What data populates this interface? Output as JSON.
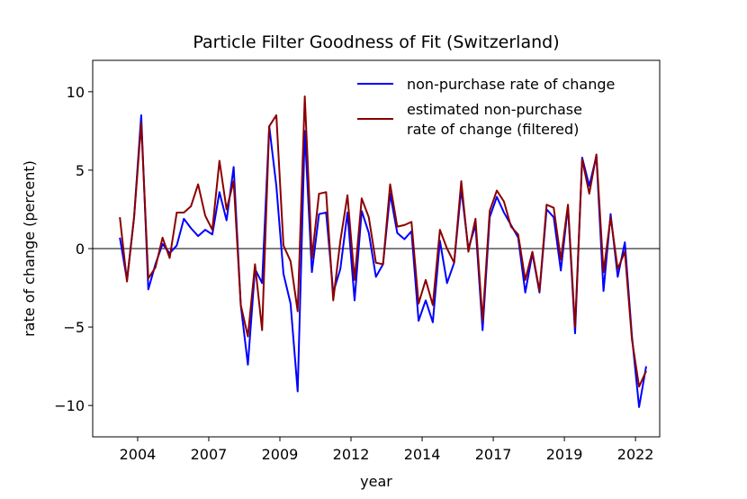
{
  "chart_data": {
    "type": "line",
    "title": "Particle Filter Goodness of Fit (Switzerland)",
    "xlabel": "year",
    "ylabel": "rate of change (percent)",
    "x": [
      2003.875,
      2004.125,
      2004.375,
      2004.625,
      2004.875,
      2005.125,
      2005.375,
      2005.625,
      2005.875,
      2006.125,
      2006.375,
      2006.625,
      2006.875,
      2007.125,
      2007.375,
      2007.625,
      2007.875,
      2008.125,
      2008.375,
      2008.625,
      2008.875,
      2009.125,
      2009.375,
      2009.625,
      2009.875,
      2010.125,
      2010.375,
      2010.625,
      2010.875,
      2011.125,
      2011.375,
      2011.625,
      2011.875,
      2012.125,
      2012.375,
      2012.625,
      2012.875,
      2013.125,
      2013.375,
      2013.625,
      2013.875,
      2014.125,
      2014.375,
      2014.625,
      2014.875,
      2015.125,
      2015.375,
      2015.625,
      2015.875,
      2016.125,
      2016.375,
      2016.625,
      2016.875,
      2017.125,
      2017.375,
      2017.625,
      2017.875,
      2018.125,
      2018.375,
      2018.625,
      2018.875,
      2019.125,
      2019.375,
      2019.625,
      2019.875,
      2020.125,
      2020.375,
      2020.625,
      2020.875,
      2021.125,
      2021.375,
      2021.625,
      2021.875,
      2022.125,
      2022.375
    ],
    "series": [
      {
        "name": "non-purchase rate of change",
        "color": "#0000ff",
        "values": [
          0.7,
          -2.0,
          2.0,
          8.5,
          -2.6,
          -1.0,
          0.3,
          -0.3,
          0.2,
          1.9,
          1.3,
          0.8,
          1.2,
          0.9,
          3.6,
          1.8,
          5.2,
          -3.6,
          -7.4,
          -1.3,
          -2.2,
          7.8,
          4.0,
          -1.6,
          -3.5,
          -9.1,
          7.5,
          -1.5,
          2.2,
          2.3,
          -2.8,
          -1.3,
          2.3,
          -3.3,
          2.4,
          1.0,
          -1.8,
          -1.0,
          3.5,
          1.0,
          0.6,
          1.1,
          -4.6,
          -3.3,
          -4.7,
          0.5,
          -2.2,
          -0.9,
          3.8,
          0.0,
          1.5,
          -5.2,
          2.0,
          3.3,
          2.3,
          1.5,
          0.7,
          -2.8,
          -0.3,
          -2.8,
          2.5,
          2.0,
          -1.4,
          2.7,
          -5.4,
          5.8,
          4.0,
          5.9,
          -2.7,
          2.2,
          -1.8,
          0.4,
          -5.6,
          -10.1,
          -7.5
        ]
      },
      {
        "name": "estimated non-purchase\nrate of change (filtered)",
        "color": "#8b0000",
        "values": [
          2.0,
          -2.1,
          2.0,
          8.0,
          -1.9,
          -1.2,
          0.7,
          -0.6,
          2.3,
          2.3,
          2.7,
          4.1,
          2.1,
          1.2,
          5.6,
          2.5,
          4.3,
          -3.6,
          -5.6,
          -1.0,
          -5.2,
          7.8,
          8.5,
          0.2,
          -0.8,
          -4.0,
          9.7,
          -0.6,
          3.5,
          3.6,
          -3.3,
          0.5,
          3.4,
          -2.0,
          3.2,
          2.0,
          -0.9,
          -1.0,
          4.1,
          1.4,
          1.5,
          1.7,
          -3.5,
          -2.0,
          -3.6,
          1.2,
          0.0,
          -0.9,
          4.3,
          -0.2,
          1.9,
          -4.6,
          2.4,
          3.7,
          3.0,
          1.4,
          0.9,
          -2.0,
          -0.2,
          -2.7,
          2.8,
          2.6,
          -0.7,
          2.8,
          -5.0,
          5.7,
          3.5,
          6.0,
          -1.5,
          2.0,
          -1.3,
          -0.2,
          -5.8,
          -8.8,
          -7.8
        ]
      }
    ],
    "reference_line": {
      "y": 0,
      "color": "#808080"
    },
    "xlim": [
      2002.92,
      2022.85
    ],
    "xticks": [
      {
        "value": 2004.5,
        "label": "2004"
      },
      {
        "value": 2007.0,
        "label": "2007"
      },
      {
        "value": 2009.5,
        "label": "2009"
      },
      {
        "value": 2012.0,
        "label": "2012"
      },
      {
        "value": 2014.5,
        "label": "2014"
      },
      {
        "value": 2017.0,
        "label": "2017"
      },
      {
        "value": 2019.5,
        "label": "2019"
      },
      {
        "value": 2022.0,
        "label": "2022"
      }
    ],
    "ylim": [
      -12,
      12
    ],
    "yticks": [
      {
        "value": -10,
        "label": "−10"
      },
      {
        "value": -5,
        "label": "−5"
      },
      0,
      5,
      10
    ],
    "legend": "upper right",
    "grid": false
  }
}
